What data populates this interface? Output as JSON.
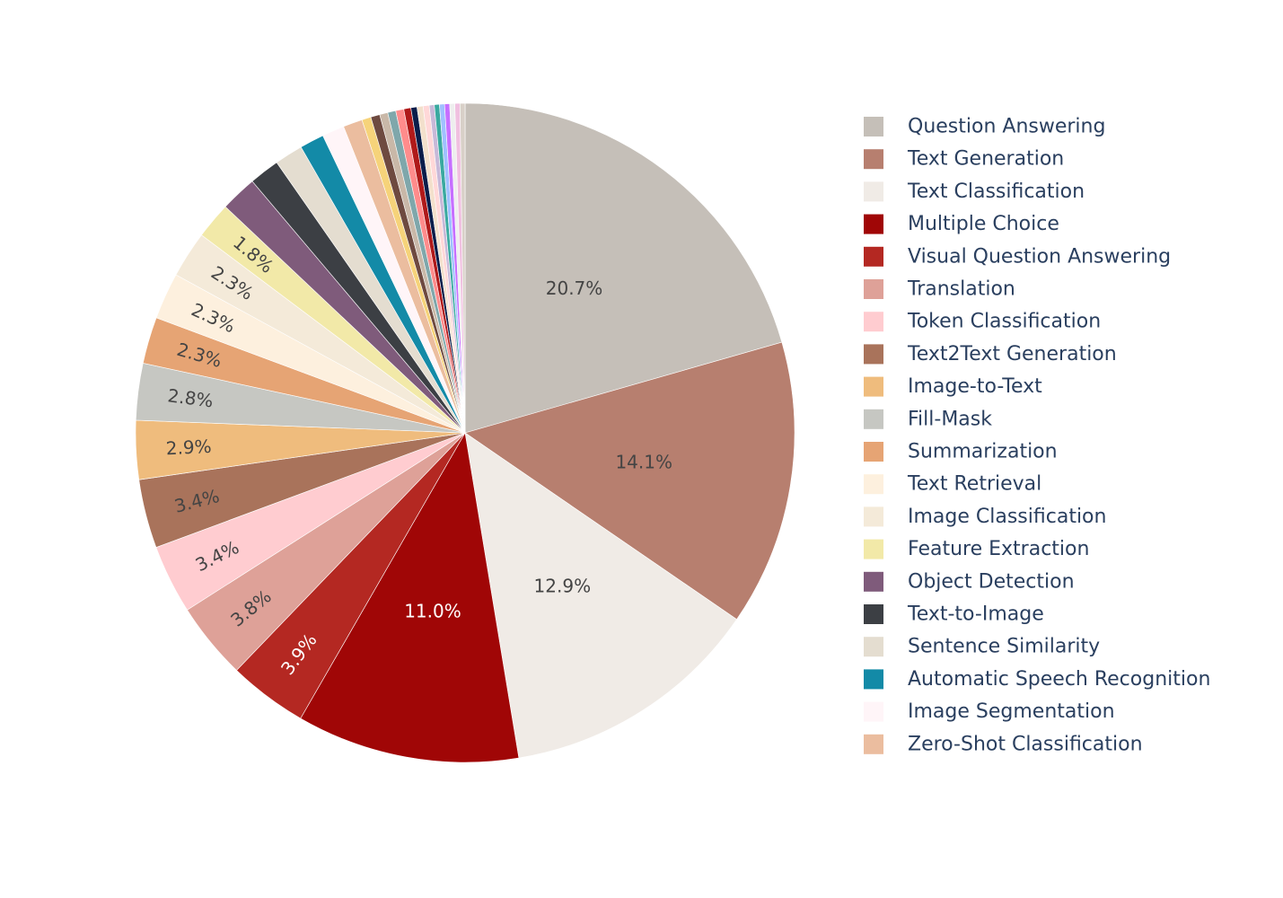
{
  "chart_data": {
    "type": "pie",
    "direction": "clockwise",
    "start": "12 o'clock",
    "legend_position": "right",
    "slices": [
      {
        "label": "Question Answering",
        "value": 20.7,
        "text": "20.7%",
        "color": "#c5bfb8",
        "text_color": "#444444"
      },
      {
        "label": "Text Generation",
        "value": 14.1,
        "text": "14.1%",
        "color": "#b77f6f",
        "text_color": "#444444"
      },
      {
        "label": "Text Classification",
        "value": 12.9,
        "text": "12.9%",
        "color": "#f0ebe6",
        "text_color": "#444444"
      },
      {
        "label": "Multiple Choice",
        "value": 11.0,
        "text": "11.0%",
        "color": "#a00606",
        "text_color": "#ffffff"
      },
      {
        "label": "Visual Question Answering",
        "value": 3.9,
        "text": "3.9%",
        "color": "#b42822",
        "text_color": "#ffffff"
      },
      {
        "label": "Translation",
        "value": 3.8,
        "text": "3.8%",
        "color": "#dea198",
        "text_color": "#444444"
      },
      {
        "label": "Token Classification",
        "value": 3.4,
        "text": "3.4%",
        "color": "#ffccd0",
        "text_color": "#444444"
      },
      {
        "label": "Text2Text Generation",
        "value": 3.4,
        "text": "3.4%",
        "color": "#a9735b",
        "text_color": "#444444"
      },
      {
        "label": "Image-to-Text",
        "value": 2.9,
        "text": "2.9%",
        "color": "#efbc7d",
        "text_color": "#444444"
      },
      {
        "label": "Fill-Mask",
        "value": 2.8,
        "text": "2.8%",
        "color": "#c6c7c2",
        "text_color": "#444444"
      },
      {
        "label": "Summarization",
        "value": 2.3,
        "text": "2.3%",
        "color": "#e6a474",
        "text_color": "#444444"
      },
      {
        "label": "Text Retrieval",
        "value": 2.3,
        "text": "2.3%",
        "color": "#fdf0de",
        "text_color": "#444444"
      },
      {
        "label": "Image Classification",
        "value": 2.3,
        "text": "2.3%",
        "color": "#f4ead9",
        "text_color": "#444444"
      },
      {
        "label": "Feature Extraction",
        "value": 1.8,
        "text": "1.8%",
        "color": "#f2e9a8",
        "text_color": "#444444"
      },
      {
        "label": "Object Detection",
        "value": 1.8,
        "color": "#7f5b7b"
      },
      {
        "label": "Text-to-Image",
        "value": 1.5,
        "color": "#3c3f44"
      },
      {
        "label": "Sentence Similarity",
        "value": 1.4,
        "color": "#e4ddd0"
      },
      {
        "label": "Automatic Speech Recognition",
        "value": 1.2,
        "color": "#138aa7"
      },
      {
        "label": "Image Segmentation",
        "value": 1.1,
        "color": "#fff5f8"
      },
      {
        "label": "Zero-Shot Classification",
        "value": 0.95,
        "color": "#ebbd9f"
      }
    ],
    "other_slices": [
      {
        "value": 0.45,
        "color": "#f6d37a"
      },
      {
        "value": 0.45,
        "color": "#6e4a40"
      },
      {
        "value": 0.4,
        "color": "#c9b8a8"
      },
      {
        "value": 0.4,
        "color": "#7fa7ab"
      },
      {
        "value": 0.4,
        "color": "#ff8c8c"
      },
      {
        "value": 0.35,
        "color": "#b01a1a"
      },
      {
        "value": 0.3,
        "color": "#0a1d4a"
      },
      {
        "value": 0.3,
        "color": "#f3e0cc"
      },
      {
        "value": 0.3,
        "color": "#ffd8d8"
      },
      {
        "value": 0.25,
        "color": "#c8b9d8"
      },
      {
        "value": 0.25,
        "color": "#3aa9a0"
      },
      {
        "value": 0.25,
        "color": "#a0c0ff"
      },
      {
        "value": 0.25,
        "color": "#c66fff"
      },
      {
        "value": 0.25,
        "color": "#eeeeee"
      },
      {
        "value": 0.25,
        "color": "#f0c0e0"
      },
      {
        "value": 0.25,
        "color": "#d8d0c8"
      }
    ]
  }
}
